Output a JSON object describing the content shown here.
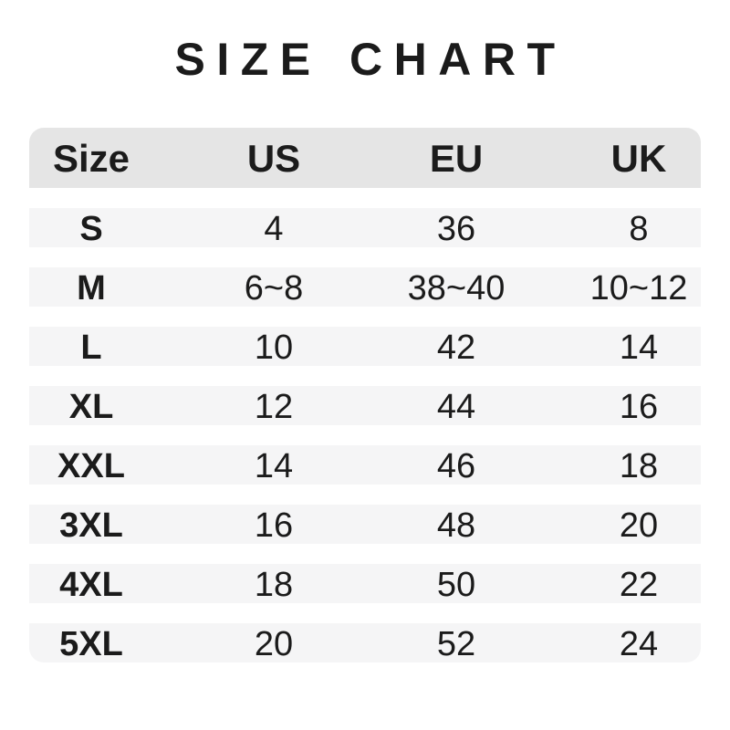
{
  "title": "SIZE CHART",
  "chart_data": {
    "type": "table",
    "title": "SIZE CHART",
    "columns": [
      "Size",
      "US",
      "EU",
      "UK"
    ],
    "rows": [
      [
        "S",
        "4",
        "36",
        "8"
      ],
      [
        "M",
        "6~8",
        "38~40",
        "10~12"
      ],
      [
        "L",
        "10",
        "42",
        "14"
      ],
      [
        "XL",
        "12",
        "44",
        "16"
      ],
      [
        "XXL",
        "14",
        "46",
        "18"
      ],
      [
        "3XL",
        "16",
        "48",
        "20"
      ],
      [
        "4XL",
        "18",
        "50",
        "22"
      ],
      [
        "5XL",
        "20",
        "52",
        "24"
      ]
    ]
  },
  "colors": {
    "page_bg": "#ffffff",
    "header_bg": "#e5e5e5",
    "row_bg": "#f5f5f6",
    "text": "#1b1b1b"
  }
}
